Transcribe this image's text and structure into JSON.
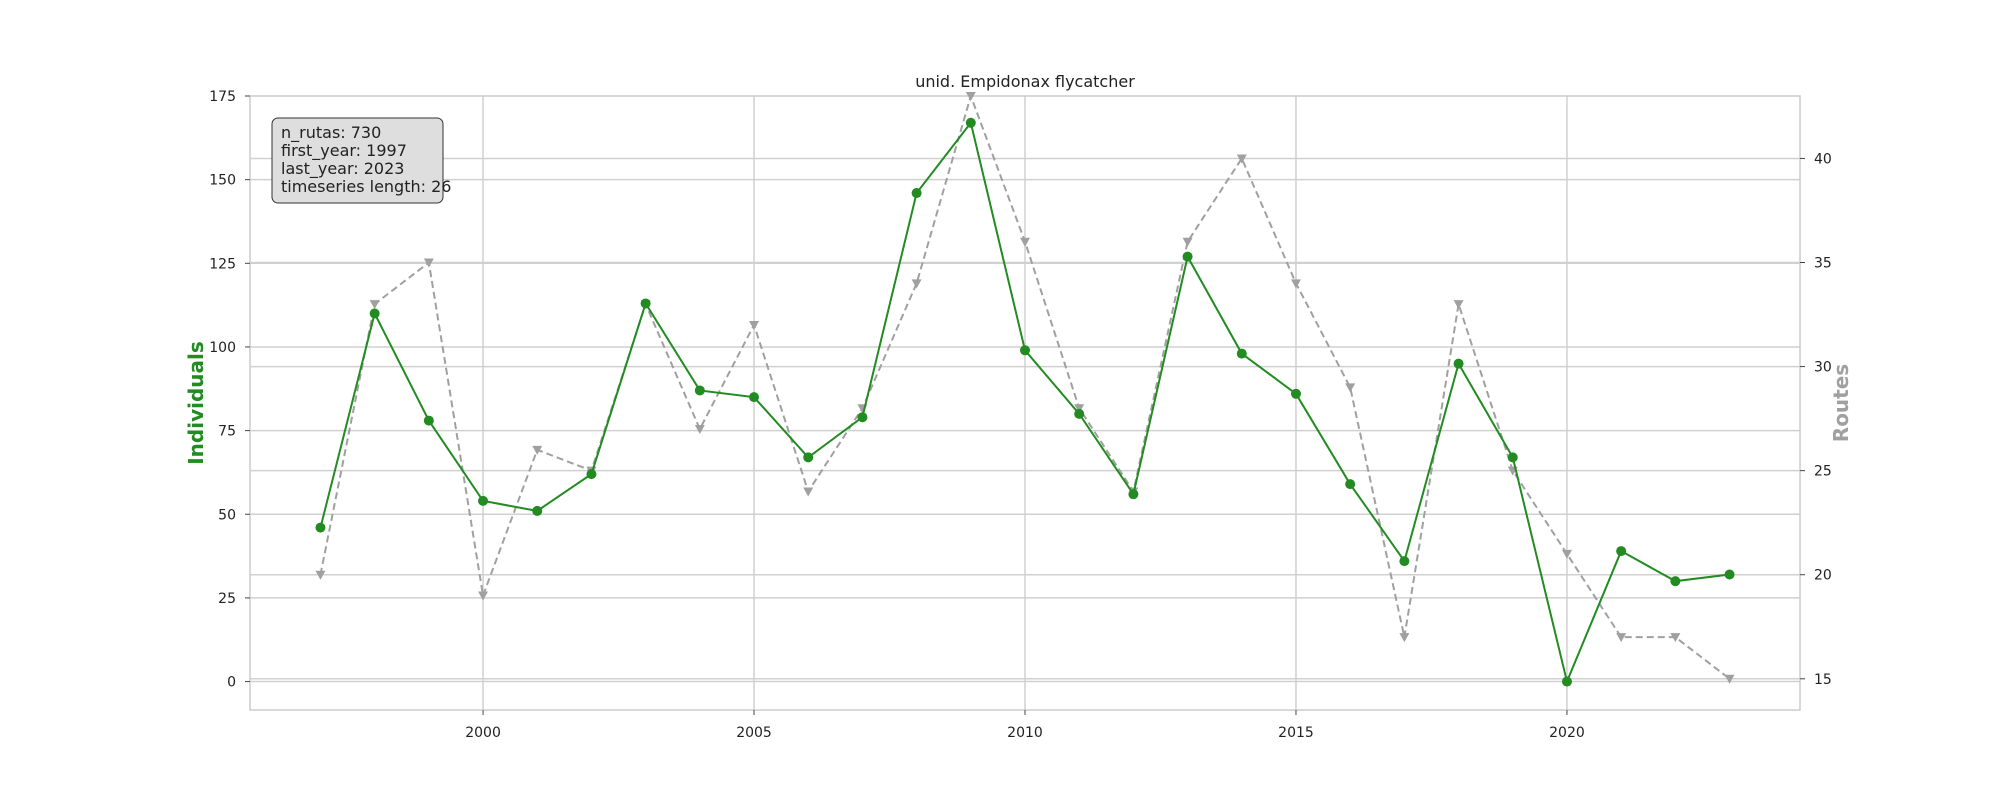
{
  "chart_data": {
    "type": "line",
    "title": "unid. Empidonax flycatcher",
    "ylabel": "Individuals",
    "ylabel_right": "Routes",
    "x": [
      1997,
      1998,
      1999,
      2000,
      2001,
      2002,
      2003,
      2004,
      2005,
      2006,
      2007,
      2008,
      2009,
      2010,
      2011,
      2012,
      2013,
      2014,
      2015,
      2016,
      2017,
      2018,
      2019,
      2020,
      2021,
      2022,
      2023
    ],
    "xlim": [
      1995.7,
      2024.3
    ],
    "xticks": [
      2000,
      2005,
      2010,
      2015,
      2020
    ],
    "ylim": [
      -8.5,
      175
    ],
    "yticks": [
      0,
      25,
      50,
      75,
      100,
      125,
      150,
      175
    ],
    "ylim_right": [
      13.5,
      43
    ],
    "yticks_right": [
      15,
      20,
      25,
      30,
      35,
      40
    ],
    "grid": true,
    "series": [
      {
        "name": "Individuals",
        "axis": "left",
        "color": "#228b22",
        "style": "solid",
        "marker": "circle",
        "values": [
          46,
          110,
          78,
          54,
          51,
          62,
          113,
          87,
          85,
          67,
          79,
          146,
          167,
          99,
          80,
          56,
          127,
          98,
          86,
          59,
          36,
          95,
          67,
          0,
          39,
          30,
          32
        ]
      },
      {
        "name": "Routes",
        "axis": "right",
        "color": "#a0a0a0",
        "style": "dashed",
        "marker": "triangle-down",
        "values": [
          20,
          33,
          35,
          19,
          26,
          25,
          33,
          27,
          32,
          24,
          28,
          34,
          43,
          36,
          28,
          24,
          36,
          40,
          34,
          29,
          17,
          33,
          25,
          21,
          17,
          17,
          15
        ]
      }
    ],
    "info_box": {
      "lines": [
        "n_rutas: 730",
        "first_year: 1997",
        "last_year: 2023",
        "timeseries length: 26"
      ]
    }
  }
}
